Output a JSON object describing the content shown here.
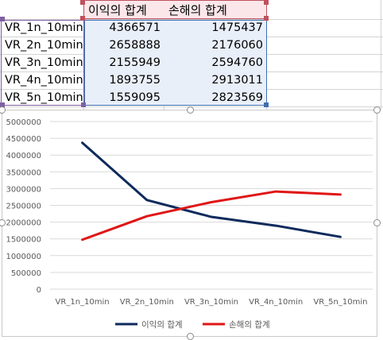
{
  "sheet": {
    "headers": [
      "이익의 합계",
      "손해의 합계"
    ],
    "rows": [
      {
        "label": "VR_1n_10min",
        "profit": "4366571",
        "loss": "1475437"
      },
      {
        "label": "VR_2n_10min",
        "profit": "2658888",
        "loss": "2176060"
      },
      {
        "label": "VR_3n_10min",
        "profit": "2155949",
        "loss": "2594760"
      },
      {
        "label": "VR_4n_10min",
        "profit": "1893755",
        "loss": "2913011"
      },
      {
        "label": "VR_5n_10min",
        "profit": "1559095",
        "loss": "2823569"
      }
    ]
  },
  "chart_data": {
    "type": "line",
    "categories": [
      "VR_1n_10min",
      "VR_2n_10min",
      "VR_3n_10min",
      "VR_4n_10min",
      "VR_5n_10min"
    ],
    "series": [
      {
        "name": "이익의 합계",
        "values": [
          4366571,
          2658888,
          2155949,
          1893755,
          1559095
        ],
        "color": "#0e2a5c"
      },
      {
        "name": "손해의 합계",
        "values": [
          1475437,
          2176060,
          2594760,
          2913011,
          2823569
        ],
        "color": "#e01616"
      }
    ],
    "ylim": [
      0,
      5000000
    ],
    "yticks": [
      "0",
      "500000",
      "1000000",
      "1500000",
      "2000000",
      "2500000",
      "3000000",
      "3500000",
      "4000000",
      "4500000",
      "5000000"
    ],
    "grid": true,
    "legend": "bottom"
  }
}
